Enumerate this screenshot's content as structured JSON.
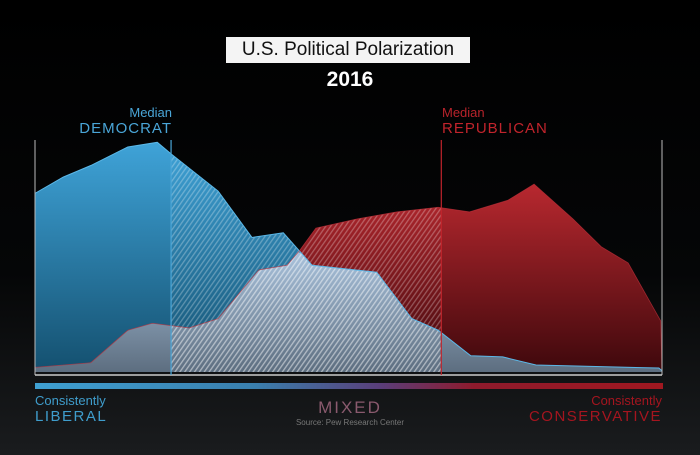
{
  "chart_data": {
    "type": "area",
    "title": "U.S. Political Polarization",
    "subtitle": "2016",
    "xlabel_left": {
      "line1": "Consistently",
      "line2": "LIBERAL"
    },
    "xlabel_center": "MIXED",
    "xlabel_right": {
      "line1": "Consistently",
      "line2": "CONSERVATIVE"
    },
    "source": "Source: Pew Research Center",
    "xlim": [
      0,
      100
    ],
    "ylim": [
      0,
      100
    ],
    "grid": false,
    "series": [
      {
        "name": "Republican",
        "color": "#b3262d",
        "x": [
          0,
          8.9,
          14.8,
          18.7,
          24.6,
          29.2,
          35.7,
          40.2,
          42.1,
          44.8,
          51.4,
          57.7,
          64.3,
          69.3,
          75.4,
          79.6,
          85.8,
          90.3,
          94.6,
          99.8,
          100
        ],
        "y": [
          2,
          4,
          18,
          21,
          19,
          23,
          44,
          46,
          52,
          62,
          66,
          69,
          71,
          69,
          74,
          81,
          66,
          54,
          47,
          22,
          0
        ]
      },
      {
        "name": "Democrat",
        "color": "#3d9fd4",
        "x": [
          0,
          4.5,
          8.9,
          14.8,
          19.5,
          21.7,
          29.2,
          34.6,
          39.6,
          44.2,
          54.5,
          60.1,
          64.3,
          69.5,
          74.6,
          79.9,
          99.5,
          100
        ],
        "y": [
          77,
          84,
          89,
          97,
          99,
          94,
          78,
          58,
          60,
          46,
          43,
          23,
          18,
          7,
          6.5,
          3,
          1.7,
          0.5
        ]
      }
    ],
    "medians": [
      {
        "label_line1": "Median",
        "label_line2": "DEMOCRAT",
        "x": 21.7,
        "color": "#4aa6d8"
      },
      {
        "label_line1": "Median",
        "label_line2": "REPUBLICAN",
        "x": 64.8,
        "color": "#c1242c"
      }
    ]
  }
}
